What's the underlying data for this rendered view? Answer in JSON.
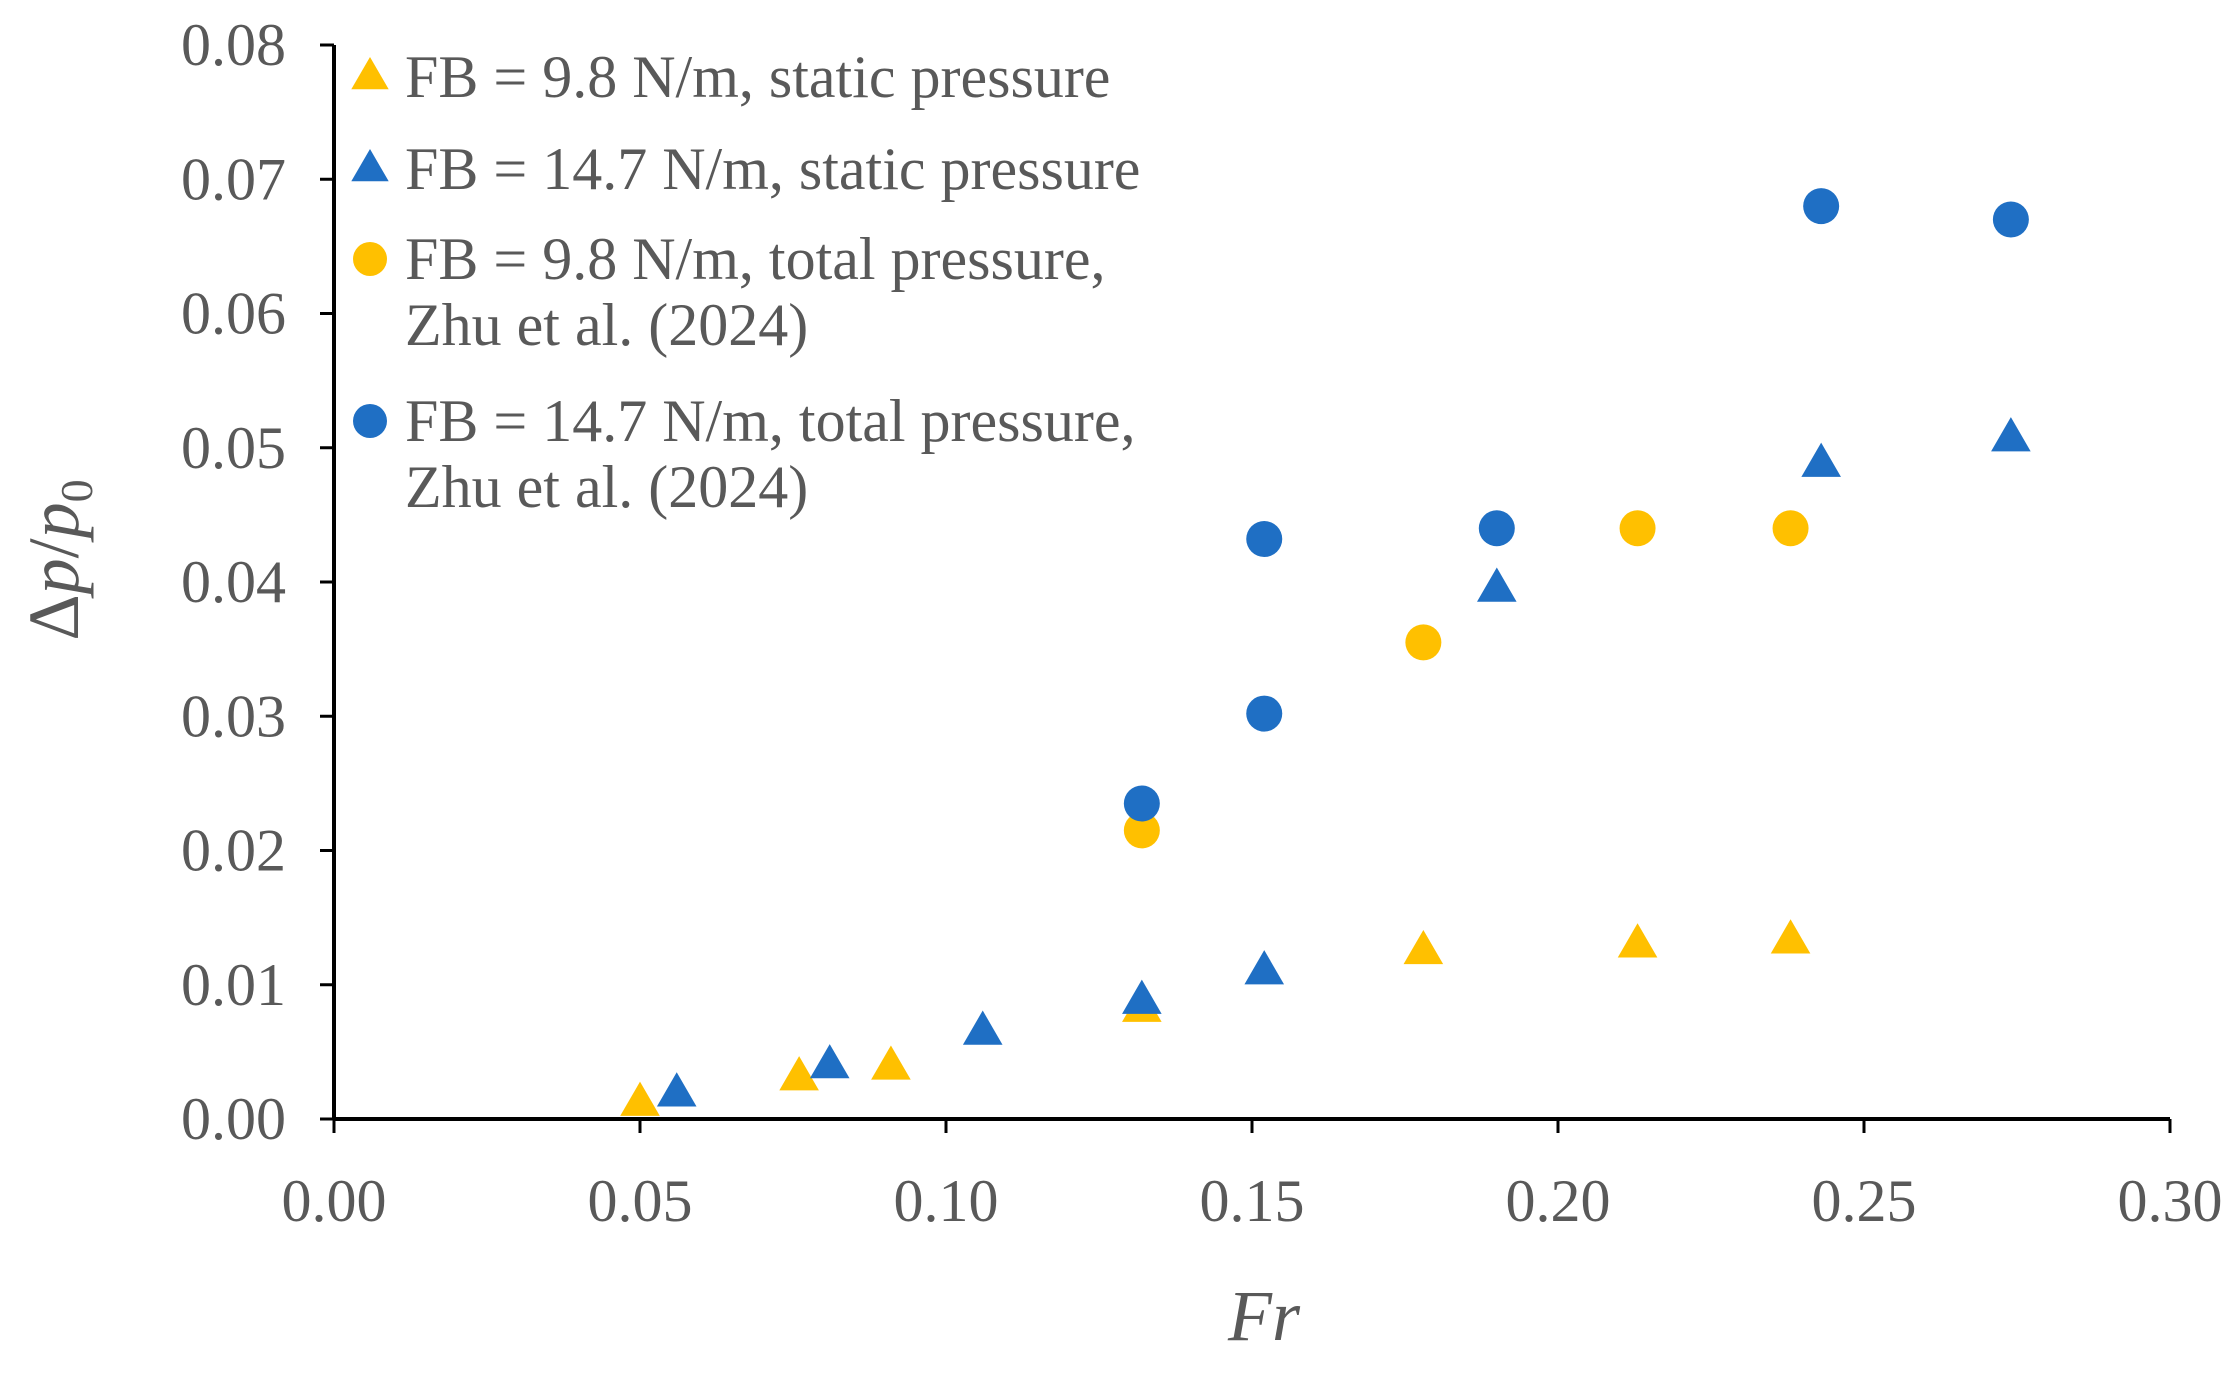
{
  "chart_data": {
    "type": "scatter",
    "title": "",
    "xlabel": "Fr",
    "ylabel": "Δp/p0",
    "ylabel_parts": {
      "delta": "Δ",
      "p": "p",
      "slash": "/",
      "p0": "p",
      "sub": "0"
    },
    "xlim": [
      0.0,
      0.3
    ],
    "ylim": [
      0.0,
      0.08
    ],
    "xticks": [
      "0.00",
      "0.05",
      "0.10",
      "0.15",
      "0.20",
      "0.25",
      "0.30"
    ],
    "yticks": [
      "0.00",
      "0.01",
      "0.02",
      "0.03",
      "0.04",
      "0.05",
      "0.06",
      "0.07",
      "0.08"
    ],
    "grid": false,
    "legend_position": "top-left",
    "series": [
      {
        "name": "FB = 9.8 N/m, static pressure",
        "legend_lines": [
          "FB = 9.8 N/m, static pressure"
        ],
        "marker": "triangle",
        "color": "#FFC000",
        "points": [
          [
            0.05,
            0.0012
          ],
          [
            0.076,
            0.0031
          ],
          [
            0.091,
            0.0039
          ],
          [
            0.132,
            0.0082
          ],
          [
            0.178,
            0.0125
          ],
          [
            0.213,
            0.013
          ],
          [
            0.238,
            0.0133
          ]
        ]
      },
      {
        "name": "FB = 14.7 N/m, static pressure",
        "legend_lines": [
          "FB = 14.7 N/m, static pressure"
        ],
        "marker": "triangle",
        "color": "#1F6FC4",
        "points": [
          [
            0.056,
            0.0019
          ],
          [
            0.081,
            0.004
          ],
          [
            0.106,
            0.0065
          ],
          [
            0.132,
            0.0088
          ],
          [
            0.152,
            0.011
          ],
          [
            0.19,
            0.0395
          ],
          [
            0.243,
            0.0488
          ],
          [
            0.274,
            0.0507
          ]
        ]
      },
      {
        "name": "FB = 9.8 N/m, total pressure, Zhu et al. (2024)",
        "legend_lines": [
          "FB = 9.8 N/m, total pressure,",
          "Zhu et al. (2024)"
        ],
        "marker": "circle",
        "color": "#FFC000",
        "points": [
          [
            0.132,
            0.0215
          ],
          [
            0.178,
            0.0355
          ],
          [
            0.213,
            0.044
          ],
          [
            0.238,
            0.044
          ]
        ]
      },
      {
        "name": "FB = 14.7 N/m, total pressure, Zhu et al. (2024)",
        "legend_lines": [
          "FB = 14.7 N/m, total pressure,",
          "Zhu et al. (2024)"
        ],
        "marker": "circle",
        "color": "#1F6FC4",
        "points": [
          [
            0.132,
            0.0235
          ],
          [
            0.152,
            0.0302
          ],
          [
            0.152,
            0.0432
          ],
          [
            0.19,
            0.044
          ],
          [
            0.243,
            0.068
          ],
          [
            0.274,
            0.067
          ]
        ]
      }
    ]
  }
}
